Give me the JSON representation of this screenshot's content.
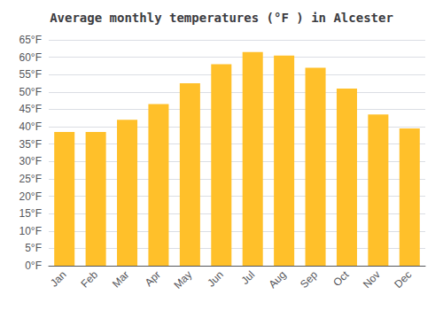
{
  "chart_data": {
    "type": "bar",
    "title": "Average monthly temperatures (°F ) in Alcester",
    "categories": [
      "Jan",
      "Feb",
      "Mar",
      "Apr",
      "May",
      "Jun",
      "Jul",
      "Aug",
      "Sep",
      "Oct",
      "Nov",
      "Dec"
    ],
    "values": [
      38.5,
      38.5,
      42.0,
      46.5,
      52.5,
      58.0,
      61.5,
      60.5,
      57.0,
      51.0,
      43.5,
      39.5
    ],
    "color": "#FFC02A",
    "ylim": [
      0,
      65
    ],
    "yticks": [
      {
        "value": 0,
        "label": "0°F"
      },
      {
        "value": 5,
        "label": "5°F"
      },
      {
        "value": 10,
        "label": "10°F"
      },
      {
        "value": 15,
        "label": "15°F"
      },
      {
        "value": 20,
        "label": "20°F"
      },
      {
        "value": 25,
        "label": "25°F"
      },
      {
        "value": 30,
        "label": "30°F"
      },
      {
        "value": 35,
        "label": "35°F"
      },
      {
        "value": 40,
        "label": "40°F"
      },
      {
        "value": 45,
        "label": "45°F"
      },
      {
        "value": 50,
        "label": "50°F"
      },
      {
        "value": 55,
        "label": "55°F"
      },
      {
        "value": 60,
        "label": "60°F"
      },
      {
        "value": 65,
        "label": "65°F"
      }
    ],
    "grid": true
  }
}
